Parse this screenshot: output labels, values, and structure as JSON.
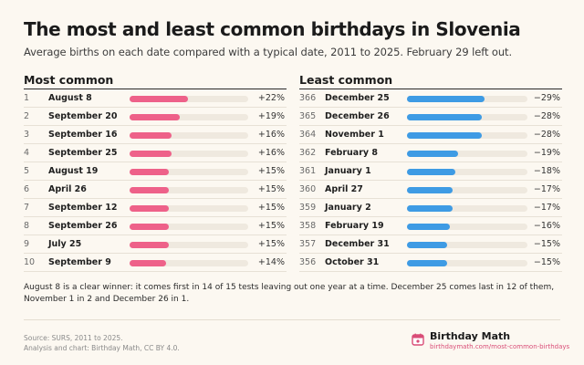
{
  "header": {
    "title": "The most and least common birthdays in Slovenia",
    "subtitle": "Average births on each date compared with a typical date, 2011 to 2025. February 29 left out."
  },
  "note": "August 8 is a clear winner: it comes first in 14 of 15 tests leaving out one year at a time. December 25 comes last in 12 of them, November 1 in 2 and December 26 in 1.",
  "footer": {
    "source": "Source: SURS, 2011 to 2025.",
    "credit": "Analysis and chart: Birthday Math, CC BY 4.0.",
    "brand_name": "Birthday Math",
    "brand_url": "birthdaymath.com/most-common-birthdays"
  },
  "colors": {
    "most": "#ee6189",
    "least": "#3e9be4",
    "track": "#efe9df"
  },
  "chart_data": [
    {
      "type": "bar",
      "title": "Most common",
      "scale_max": 45,
      "rows": [
        {
          "rank": "1",
          "date": "August 8",
          "value": 22,
          "label": "+22%"
        },
        {
          "rank": "2",
          "date": "September 20",
          "value": 19,
          "label": "+19%"
        },
        {
          "rank": "3",
          "date": "September 16",
          "value": 16,
          "label": "+16%"
        },
        {
          "rank": "4",
          "date": "September 25",
          "value": 16,
          "label": "+16%"
        },
        {
          "rank": "5",
          "date": "August 19",
          "value": 15,
          "label": "+15%"
        },
        {
          "rank": "6",
          "date": "April 26",
          "value": 15,
          "label": "+15%"
        },
        {
          "rank": "7",
          "date": "September 12",
          "value": 15,
          "label": "+15%"
        },
        {
          "rank": "8",
          "date": "September 26",
          "value": 15,
          "label": "+15%"
        },
        {
          "rank": "9",
          "date": "July 25",
          "value": 15,
          "label": "+15%"
        },
        {
          "rank": "10",
          "date": "September 9",
          "value": 14,
          "label": "+14%"
        }
      ]
    },
    {
      "type": "bar",
      "title": "Least common",
      "scale_max": 45,
      "rows": [
        {
          "rank": "366",
          "date": "December 25",
          "value": -29,
          "label": "−29%"
        },
        {
          "rank": "365",
          "date": "December 26",
          "value": -28,
          "label": "−28%"
        },
        {
          "rank": "364",
          "date": "November 1",
          "value": -28,
          "label": "−28%"
        },
        {
          "rank": "362",
          "date": "February 8",
          "value": -19,
          "label": "−19%"
        },
        {
          "rank": "361",
          "date": "January 1",
          "value": -18,
          "label": "−18%"
        },
        {
          "rank": "360",
          "date": "April 27",
          "value": -17,
          "label": "−17%"
        },
        {
          "rank": "359",
          "date": "January 2",
          "value": -17,
          "label": "−17%"
        },
        {
          "rank": "358",
          "date": "February 19",
          "value": -16,
          "label": "−16%"
        },
        {
          "rank": "357",
          "date": "December 31",
          "value": -15,
          "label": "−15%"
        },
        {
          "rank": "356",
          "date": "October 31",
          "value": -15,
          "label": "−15%"
        }
      ]
    }
  ]
}
